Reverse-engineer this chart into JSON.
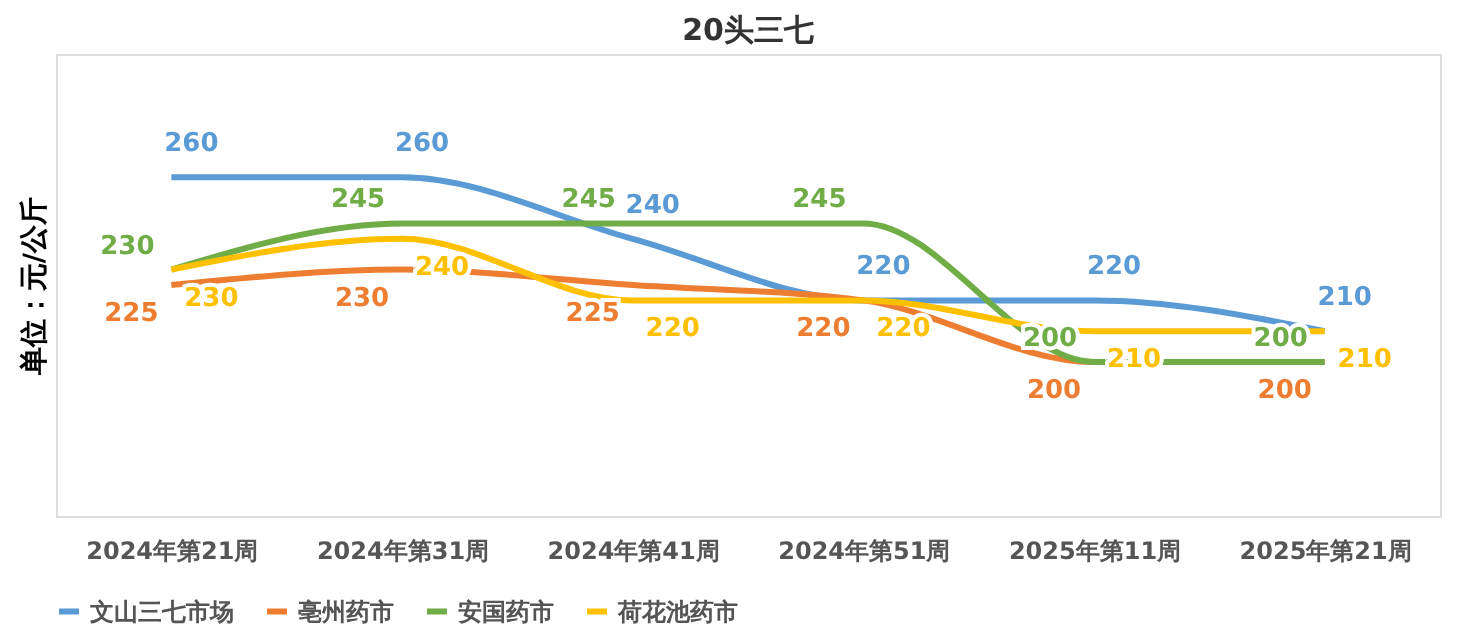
{
  "chart_data": {
    "type": "line",
    "title": "20头三七",
    "ylabel": "单位：元/公斤",
    "categories": [
      "2024年第21周",
      "2024年第31周",
      "2024年第41周",
      "2024年第51周",
      "2025年第11周",
      "2025年第21周"
    ],
    "series": [
      {
        "name": "文山三七市场",
        "color": "#5b9bd5",
        "values": [
          260,
          260,
          240,
          220,
          220,
          210
        ]
      },
      {
        "name": "亳州药市",
        "color": "#ed7d31",
        "values": [
          225,
          230,
          225,
          220,
          200,
          200
        ]
      },
      {
        "name": "安国药市",
        "color": "#70ad47",
        "values": [
          230,
          245,
          245,
          245,
          200,
          200
        ]
      },
      {
        "name": "荷花池药市",
        "color": "#ffc000",
        "values": [
          230,
          240,
          220,
          220,
          210,
          210
        ]
      }
    ],
    "ylim": [
      150,
      300
    ],
    "tick_labels": "x",
    "data_labels": true,
    "legend": "bottom",
    "grid": false,
    "marker": "none",
    "line_style": "solid"
  }
}
